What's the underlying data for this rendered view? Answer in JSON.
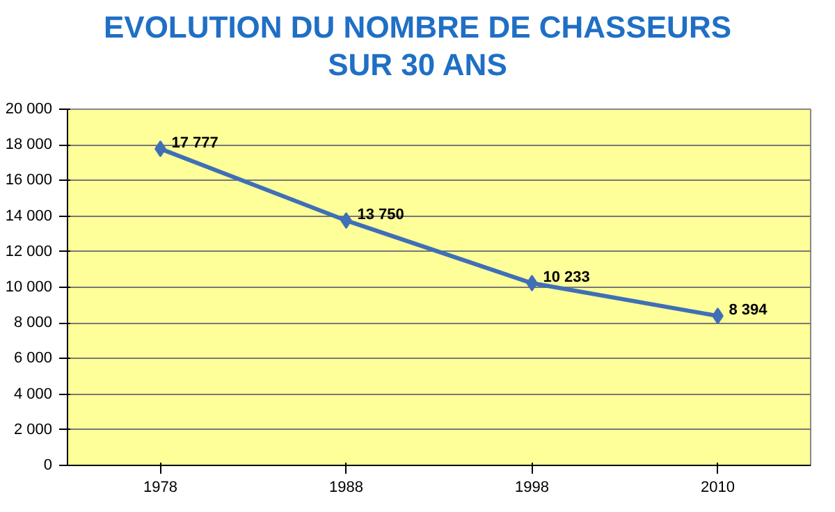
{
  "chart_data": {
    "type": "line",
    "title": "EVOLUTION DU NOMBRE DE CHASSEURS\nSUR 30 ANS",
    "categories": [
      "1978",
      "1988",
      "1998",
      "2010"
    ],
    "series": [
      {
        "color": "#3f6fb6",
        "values": [
          17777,
          13750,
          10233,
          8394
        ],
        "value_labels": [
          "17 777",
          "13 750",
          "10 233",
          "8 394"
        ]
      }
    ],
    "ylim": [
      0,
      20000
    ],
    "yticks": [
      0,
      {
        "value": 2000,
        "label": "2 000"
      },
      {
        "value": 4000,
        "label": "4 000"
      },
      {
        "value": 6000,
        "label": "6 000"
      },
      {
        "value": 8000,
        "label": "8 000"
      },
      {
        "value": 10000,
        "label": "10 000"
      },
      {
        "value": 12000,
        "label": "12 000"
      },
      {
        "value": 14000,
        "label": "14 000"
      },
      {
        "value": 16000,
        "label": "16 000"
      },
      {
        "value": 18000,
        "label": "18 000"
      },
      {
        "value": 20000,
        "label": "20 000"
      }
    ],
    "grid": "y",
    "marker": "diamond",
    "line_style": "solid"
  }
}
